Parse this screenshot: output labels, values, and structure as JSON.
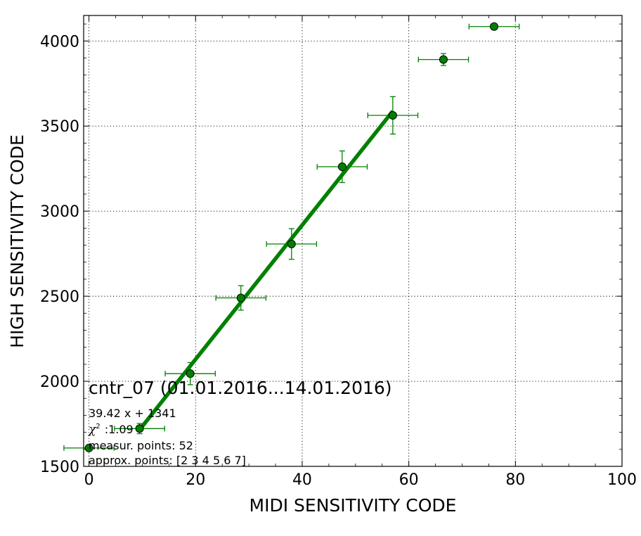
{
  "chart_data": {
    "type": "scatter",
    "xlabel": "MIDI SENSITIVITY CODE",
    "ylabel": "HIGH SENSITIVITY CODE",
    "xlim": [
      -1,
      100
    ],
    "ylim": [
      1500,
      4150
    ],
    "x_ticks": [
      0,
      20,
      40,
      60,
      80,
      100
    ],
    "y_ticks": [
      1500,
      2000,
      2500,
      3000,
      3500,
      4000
    ],
    "x_minor_step": 5,
    "y_minor_step": 100,
    "grid": true,
    "colors": {
      "series": "#008000",
      "marker_edge": "#000000",
      "fit_line": "#008000"
    },
    "series": [
      {
        "points": [
          {
            "x": 0,
            "y": 1608,
            "xerr": 4.7,
            "yerr": 12
          },
          {
            "x": 9.5,
            "y": 1722,
            "xerr": 4.7,
            "yerr": 30
          },
          {
            "x": 19,
            "y": 2045,
            "xerr": 4.7,
            "yerr": 65
          },
          {
            "x": 28.5,
            "y": 2490,
            "xerr": 4.7,
            "yerr": 72
          },
          {
            "x": 38,
            "y": 2807,
            "xerr": 4.7,
            "yerr": 90
          },
          {
            "x": 47.5,
            "y": 3261,
            "xerr": 4.7,
            "yerr": 93
          },
          {
            "x": 57,
            "y": 3563,
            "xerr": 4.7,
            "yerr": 110
          },
          {
            "x": 66.5,
            "y": 3891,
            "xerr": 4.7,
            "yerr": 35
          },
          {
            "x": 76,
            "y": 4085,
            "xerr": 4.7,
            "yerr": 10
          }
        ]
      }
    ],
    "fit": {
      "slope": 39.42,
      "intercept": 1341,
      "x_range": [
        9.5,
        57
      ]
    },
    "annotations": {
      "title": "cntr_07 (01.01.2016...14.01.2016)",
      "equation": "39.42 x + 1341",
      "chi_symbol": "χ",
      "chi_sup": "2",
      "chi_value": ":1.09",
      "measur_points": "measur. points: 52",
      "approx_points": "approx. points: [2 3 4 5 6 7]"
    }
  }
}
